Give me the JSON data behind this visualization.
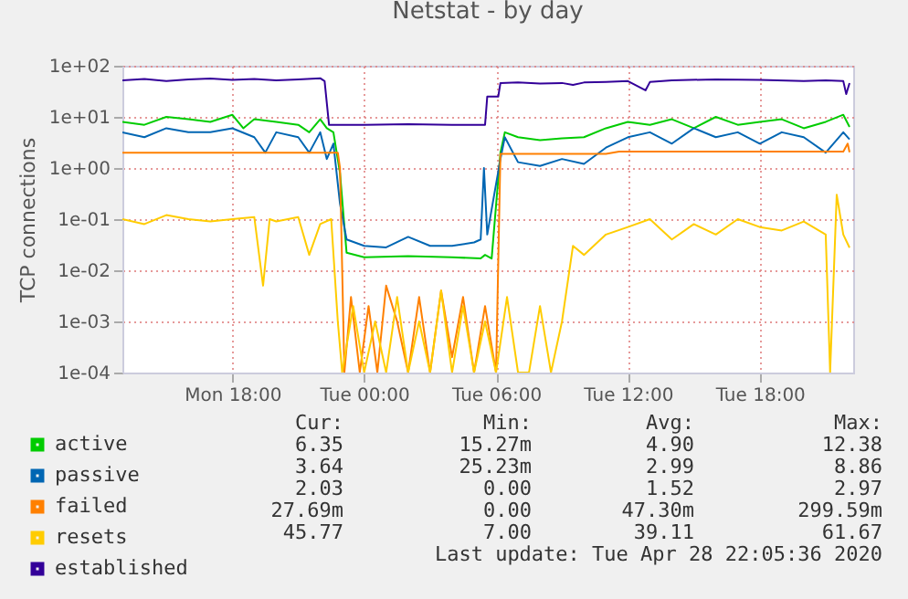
{
  "chart_data": {
    "type": "line",
    "title": "Netstat - by day",
    "ylabel": "TCP connections",
    "log": true,
    "grid": true,
    "legend": "bottom left",
    "xlim": [
      "2020-04-27T13:00",
      "2020-04-28T22:15"
    ],
    "xticks": [
      {
        "value": "2020-04-27T18:00",
        "label": "Mon 18:00"
      },
      {
        "value": "2020-04-28T00:00",
        "label": "Tue 00:00"
      },
      {
        "value": "2020-04-28T06:00",
        "label": "Tue 06:00"
      },
      {
        "value": "2020-04-28T12:00",
        "label": "Tue 12:00"
      },
      {
        "value": "2020-04-28T18:00",
        "label": "Tue 18:00"
      }
    ],
    "ylim": [
      0.0001,
      100
    ],
    "yticks": [
      {
        "value": 0.0001,
        "label": "1e-04"
      },
      {
        "value": 0.001,
        "label": "1e-03"
      },
      {
        "value": 0.01,
        "label": "1e-02"
      },
      {
        "value": 0.1,
        "label": "1e-01"
      },
      {
        "value": 1,
        "label": "1e+00"
      },
      {
        "value": 10,
        "label": "1e+01"
      },
      {
        "value": 100,
        "label": "1e+02"
      }
    ],
    "series": [
      {
        "name": "active",
        "color": "#00cc00",
        "x": [
          "2020-04-27T13:00",
          "2020-04-27T14:00",
          "2020-04-27T15:00",
          "2020-04-27T16:00",
          "2020-04-27T17:00",
          "2020-04-27T18:00",
          "2020-04-27T18:30",
          "2020-04-27T19:00",
          "2020-04-27T20:00",
          "2020-04-27T21:00",
          "2020-04-27T21:30",
          "2020-04-27T22:00",
          "2020-04-27T22:18",
          "2020-04-27T22:36",
          "2020-04-27T22:54",
          "2020-04-27T23:12",
          "2020-04-28T00:00",
          "2020-04-28T02:00",
          "2020-04-28T04:00",
          "2020-04-28T05:18",
          "2020-04-28T05:30",
          "2020-04-28T05:48",
          "2020-04-28T06:12",
          "2020-04-28T06:24",
          "2020-04-28T07:00",
          "2020-04-28T08:00",
          "2020-04-28T09:00",
          "2020-04-28T10:00",
          "2020-04-28T11:00",
          "2020-04-28T12:00",
          "2020-04-28T13:00",
          "2020-04-28T14:00",
          "2020-04-28T15:00",
          "2020-04-28T16:00",
          "2020-04-28T17:00",
          "2020-04-28T18:00",
          "2020-04-28T19:00",
          "2020-04-28T20:00",
          "2020-04-28T21:00",
          "2020-04-28T21:48",
          "2020-04-28T22:05"
        ],
        "values": [
          8,
          7,
          10,
          9,
          8,
          11,
          6,
          9,
          8,
          7,
          5,
          9,
          6,
          5,
          0.8,
          0.022,
          0.018,
          0.019,
          0.018,
          0.017,
          0.02,
          0.017,
          2,
          5,
          4,
          3.5,
          3.8,
          4,
          6,
          8,
          7,
          9,
          6,
          10,
          7,
          8,
          9,
          6,
          8,
          11,
          6.35
        ]
      },
      {
        "name": "passive",
        "color": "#0066b3",
        "x": [
          "2020-04-27T13:00",
          "2020-04-27T14:00",
          "2020-04-27T15:00",
          "2020-04-27T16:00",
          "2020-04-27T17:00",
          "2020-04-27T18:00",
          "2020-04-27T19:00",
          "2020-04-27T19:30",
          "2020-04-27T20:00",
          "2020-04-27T21:00",
          "2020-04-27T21:30",
          "2020-04-27T22:00",
          "2020-04-27T22:18",
          "2020-04-27T22:36",
          "2020-04-27T22:54",
          "2020-04-27T23:12",
          "2020-04-28T00:00",
          "2020-04-28T01:00",
          "2020-04-28T02:00",
          "2020-04-28T03:00",
          "2020-04-28T04:00",
          "2020-04-28T05:00",
          "2020-04-28T05:18",
          "2020-04-28T05:27",
          "2020-04-28T05:36",
          "2020-04-28T06:12",
          "2020-04-28T06:24",
          "2020-04-28T07:00",
          "2020-04-28T08:00",
          "2020-04-28T09:00",
          "2020-04-28T10:00",
          "2020-04-28T11:00",
          "2020-04-28T12:00",
          "2020-04-28T13:00",
          "2020-04-28T14:00",
          "2020-04-28T15:00",
          "2020-04-28T16:00",
          "2020-04-28T17:00",
          "2020-04-28T18:00",
          "2020-04-28T19:00",
          "2020-04-28T20:00",
          "2020-04-28T21:00",
          "2020-04-28T21:48",
          "2020-04-28T22:05"
        ],
        "values": [
          5,
          4,
          6,
          5,
          5,
          6,
          4,
          2,
          5,
          4,
          2,
          5,
          1.5,
          3,
          0.2,
          0.04,
          0.03,
          0.028,
          0.045,
          0.03,
          0.03,
          0.035,
          0.04,
          1,
          0.05,
          1.5,
          4,
          1.3,
          1.1,
          1.5,
          1.2,
          2.5,
          4,
          5,
          3,
          6,
          4,
          5,
          3,
          5,
          4,
          2,
          5,
          3.64
        ]
      },
      {
        "name": "failed",
        "color": "#ff8000",
        "x": [
          "2020-04-27T13:00",
          "2020-04-27T16:00",
          "2020-04-27T20:00",
          "2020-04-27T22:48",
          "2020-04-27T22:54",
          "2020-04-27T23:06",
          "2020-04-27T23:24",
          "2020-04-27T23:48",
          "2020-04-28T00:12",
          "2020-04-28T00:36",
          "2020-04-28T01:00",
          "2020-04-28T01:30",
          "2020-04-28T02:00",
          "2020-04-28T02:30",
          "2020-04-28T03:00",
          "2020-04-28T03:30",
          "2020-04-28T04:00",
          "2020-04-28T04:30",
          "2020-04-28T05:00",
          "2020-04-28T05:30",
          "2020-04-28T06:00",
          "2020-04-28T06:12",
          "2020-04-28T07:00",
          "2020-04-28T09:00",
          "2020-04-28T11:00",
          "2020-04-28T11:36",
          "2020-04-28T12:00",
          "2020-04-28T16:00",
          "2020-04-28T20:00",
          "2020-04-28T21:48",
          "2020-04-28T22:00",
          "2020-04-28T22:05"
        ],
        "values": [
          2,
          2,
          2,
          2,
          1,
          0.0001,
          0.003,
          0.0001,
          0.002,
          0.0001,
          0.005,
          0.001,
          0.0001,
          0.003,
          0.0001,
          0.004,
          0.0002,
          0.003,
          0.0001,
          0.002,
          0.0001,
          1.9,
          1.9,
          1.9,
          1.9,
          2.1,
          2.1,
          2.1,
          2.1,
          2.1,
          3,
          2.03
        ]
      },
      {
        "name": "resets",
        "color": "#ffcc00",
        "x": [
          "2020-04-27T13:00",
          "2020-04-27T14:00",
          "2020-04-27T15:00",
          "2020-04-27T16:00",
          "2020-04-27T17:00",
          "2020-04-27T18:00",
          "2020-04-27T19:00",
          "2020-04-27T19:24",
          "2020-04-27T19:42",
          "2020-04-27T20:00",
          "2020-04-27T21:00",
          "2020-04-27T21:30",
          "2020-04-27T22:00",
          "2020-04-27T22:30",
          "2020-04-27T22:48",
          "2020-04-27T23:00",
          "2020-04-27T23:30",
          "2020-04-28T00:00",
          "2020-04-28T00:30",
          "2020-04-28T01:00",
          "2020-04-28T01:30",
          "2020-04-28T02:00",
          "2020-04-28T02:30",
          "2020-04-28T03:00",
          "2020-04-28T03:30",
          "2020-04-28T04:00",
          "2020-04-28T04:30",
          "2020-04-28T05:00",
          "2020-04-28T05:30",
          "2020-04-28T06:00",
          "2020-04-28T06:30",
          "2020-04-28T07:00",
          "2020-04-28T07:30",
          "2020-04-28T08:00",
          "2020-04-28T08:30",
          "2020-04-28T09:00",
          "2020-04-28T09:30",
          "2020-04-28T10:00",
          "2020-04-28T11:00",
          "2020-04-28T12:00",
          "2020-04-28T13:00",
          "2020-04-28T14:00",
          "2020-04-28T15:00",
          "2020-04-28T16:00",
          "2020-04-28T17:00",
          "2020-04-28T18:00",
          "2020-04-28T19:00",
          "2020-04-28T20:00",
          "2020-04-28T21:00",
          "2020-04-28T21:12",
          "2020-04-28T21:30",
          "2020-04-28T21:48",
          "2020-04-28T22:05"
        ],
        "values": [
          0.1,
          0.08,
          0.12,
          0.1,
          0.09,
          0.1,
          0.11,
          0.005,
          0.1,
          0.09,
          0.11,
          0.02,
          0.08,
          0.1,
          0.001,
          0.0001,
          0.002,
          0.0001,
          0.001,
          0.0001,
          0.003,
          0.0001,
          0.001,
          0.0001,
          0.004,
          0.0001,
          0.002,
          0.0001,
          0.001,
          0.0001,
          0.003,
          0.0001,
          0.0001,
          0.002,
          0.0001,
          0.001,
          0.03,
          0.02,
          0.05,
          0.07,
          0.1,
          0.04,
          0.08,
          0.05,
          0.1,
          0.07,
          0.06,
          0.09,
          0.05,
          0.0001,
          0.3,
          0.05,
          0.02769
        ]
      },
      {
        "name": "established",
        "color": "#330099",
        "x": [
          "2020-04-27T13:00",
          "2020-04-27T14:00",
          "2020-04-27T15:00",
          "2020-04-27T16:00",
          "2020-04-27T17:00",
          "2020-04-27T18:00",
          "2020-04-27T19:00",
          "2020-04-27T20:00",
          "2020-04-27T21:00",
          "2020-04-27T22:00",
          "2020-04-27T22:12",
          "2020-04-27T22:24",
          "2020-04-28T00:00",
          "2020-04-28T02:00",
          "2020-04-28T04:00",
          "2020-04-28T05:30",
          "2020-04-28T05:36",
          "2020-04-28T06:06",
          "2020-04-28T06:12",
          "2020-04-28T07:00",
          "2020-04-28T08:00",
          "2020-04-28T09:00",
          "2020-04-28T09:30",
          "2020-04-28T10:00",
          "2020-04-28T11:00",
          "2020-04-28T12:00",
          "2020-04-28T12:48",
          "2020-04-28T13:00",
          "2020-04-28T14:00",
          "2020-04-28T16:00",
          "2020-04-28T18:00",
          "2020-04-28T20:00",
          "2020-04-28T21:00",
          "2020-04-28T21:48",
          "2020-04-28T21:56",
          "2020-04-28T22:05"
        ],
        "values": [
          52,
          55,
          50,
          54,
          56,
          53,
          55,
          52,
          54,
          57,
          50,
          7,
          7,
          7.2,
          7,
          7,
          25,
          25,
          46,
          47,
          45,
          46,
          42,
          47,
          48,
          50,
          33,
          48,
          52,
          54,
          53,
          50,
          52,
          50,
          28,
          45.77
        ]
      }
    ],
    "annotations": [
      "Cur:",
      "Min:",
      "Avg:",
      "Max:",
      "6.35",
      "15.27m",
      "4.90",
      "12.38",
      "3.64",
      "25.23m",
      "2.99",
      "8.86",
      "2.03",
      "0.00",
      "1.52",
      "2.97",
      "27.69m",
      "0.00",
      "47.30m",
      "299.59m",
      "45.77",
      "7.00",
      "39.11",
      "61.67",
      "Last update: Tue Apr 28 22:05:36 2020"
    ]
  }
}
